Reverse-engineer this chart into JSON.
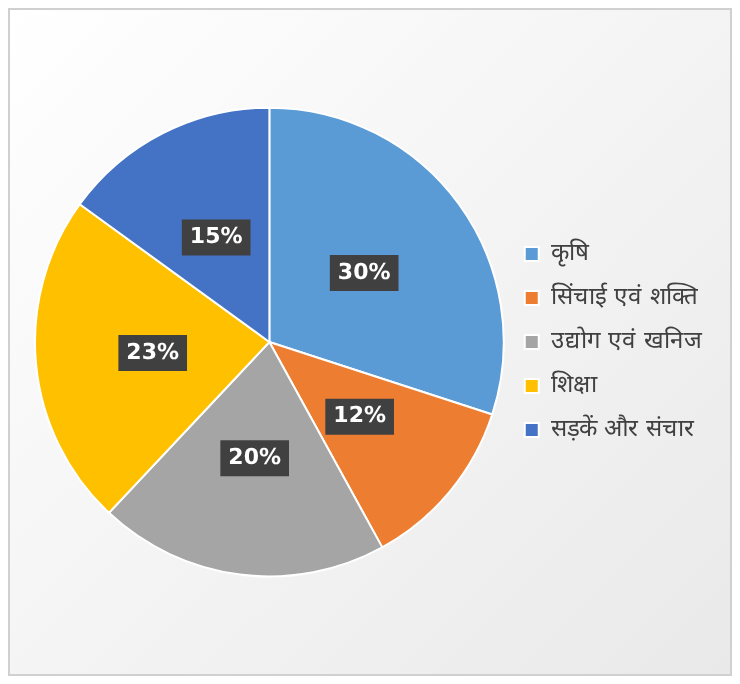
{
  "chart_data": {
    "type": "pie",
    "categories": [
      "कृषि",
      "सिंचाई एवं शक्ति",
      "उद्योग एवं खनिज",
      "शिक्षा",
      "सड़कें और संचार"
    ],
    "values": [
      30,
      12,
      20,
      23,
      15
    ],
    "colors": [
      "#5b9bd5",
      "#ed7d31",
      "#a5a5a5",
      "#ffc000",
      "#4472c4"
    ],
    "value_labels": [
      "30%",
      "12%",
      "20%",
      "23%",
      "15%"
    ],
    "legend": "right"
  }
}
